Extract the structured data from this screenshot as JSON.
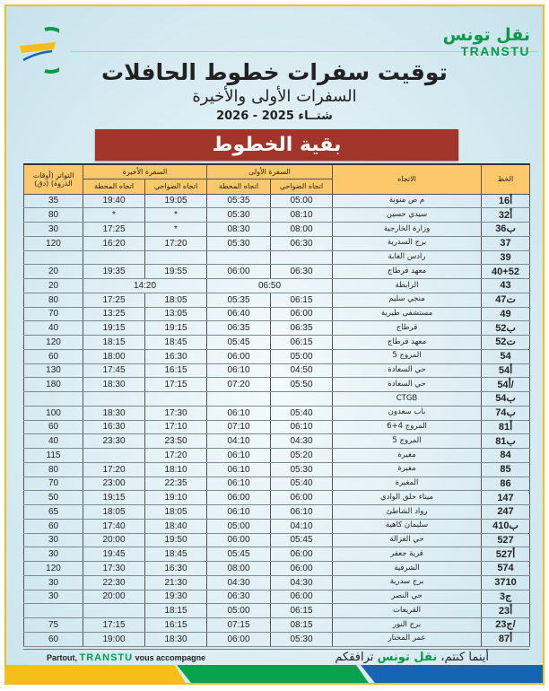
{
  "brand": {
    "name_ar": "نقل تونس",
    "name_en": "TRANSTU",
    "colors": {
      "green": "#0b9a48",
      "yellow": "#f5bf1a",
      "blue": "#1565b4",
      "red": "#a2352a"
    }
  },
  "header": {
    "title": "توقيت سفرات خطوط الحافلات",
    "subtitle": "السفرات الأولى والأخيرة",
    "season": "شتــاء 2025 - 2026",
    "section": "بقية الخطوط"
  },
  "table": {
    "headers": {
      "line": "الخط",
      "destination": "الاتجاه",
      "first": "السفرة الأولى",
      "last": "السفرة الأخيرة",
      "frequency": "التواتر (أوقات الذروة) (دق)",
      "to_suburb": "اتجاه الضواحي",
      "to_station": "اتجاه المحطة"
    },
    "rows": [
      {
        "line": "16أ",
        "dest": "م ص منوبة",
        "fs": "05:00",
        "ft": "05:35",
        "ls": "19:05",
        "lt": "19:40",
        "freq": "35"
      },
      {
        "line": "32أ",
        "dest": "سيدي حسين",
        "fs": "08:10",
        "ft": "05:30",
        "ls": "*",
        "lt": "*",
        "freq": "80"
      },
      {
        "line": "36ب",
        "dest": "وزارة الخارجية",
        "fs": "08:00",
        "ft": "08:30",
        "ls": "*",
        "lt": "17:25",
        "freq": "30"
      },
      {
        "line": "37",
        "dest": "برج السدرية",
        "fs": "06:30",
        "ft": "05:30",
        "ls": "17:20",
        "lt": "16:20",
        "freq": "120"
      },
      {
        "line": "39",
        "dest": "رادس الغابة",
        "fs": "",
        "ft": "",
        "ls": "",
        "lt": "",
        "freq": ""
      },
      {
        "line": "40+52",
        "dest": "معهد قرطاج",
        "fs": "06:30",
        "ft": "06:00",
        "ls": "19:55",
        "lt": "19:35",
        "freq": "20"
      },
      {
        "line": "43",
        "dest": "الرابطة",
        "first_merged": "06:50",
        "last_merged": "14:20",
        "freq": "20"
      },
      {
        "line": "47ت",
        "dest": "منجي سليم",
        "fs": "06:15",
        "ft": "05:35",
        "ls": "18:05",
        "lt": "17:25",
        "freq": "80"
      },
      {
        "line": "49",
        "dest": "مستشفى طبرية",
        "fs": "06:00",
        "ft": "06:40",
        "ls": "13:05",
        "lt": "13:25",
        "freq": "70"
      },
      {
        "line": "52ب",
        "dest": "قرطاج",
        "fs": "06:35",
        "ft": "06:35",
        "ls": "19:15",
        "lt": "19:15",
        "freq": "40"
      },
      {
        "line": "52ت",
        "dest": "معهد قرطاج",
        "fs": "06:15",
        "ft": "05:45",
        "ls": "18:45",
        "lt": "18:15",
        "freq": "120"
      },
      {
        "line": "54",
        "dest": "المروج 5",
        "fs": "05:00",
        "ft": "06:00",
        "ls": "16:30",
        "lt": "18:00",
        "freq": "60"
      },
      {
        "line": "54أ",
        "dest": "حي السعادة",
        "fs": "04:50",
        "ft": "06:10",
        "ls": "16:15",
        "lt": "17:45",
        "freq": "130"
      },
      {
        "line": "54أ/",
        "dest": "حي السعادة",
        "fs": "05:50",
        "ft": "07:20",
        "ls": "17:15",
        "lt": "18:30",
        "freq": "180"
      },
      {
        "line": "54ب",
        "dest": "CTGB",
        "fs": "",
        "ft": "",
        "ls": "",
        "lt": "",
        "freq": ""
      },
      {
        "line": "74ب",
        "dest": "باب سعدون",
        "fs": "05:40",
        "ft": "06:10",
        "ls": "17:30",
        "lt": "18:30",
        "freq": "100"
      },
      {
        "line": "81أ",
        "dest": "المروج 4+6",
        "fs": "06:10",
        "ft": "07:10",
        "ls": "17:10",
        "lt": "16:30",
        "freq": "60"
      },
      {
        "line": "81ب",
        "dest": "المروج 5",
        "fs": "04:30",
        "ft": "04:10",
        "ls": "23:50",
        "lt": "23:30",
        "freq": "40"
      },
      {
        "line": "84",
        "dest": "مغيرة",
        "fs": "05:20",
        "ft": "06:10",
        "ls": "17:20",
        "lt": "",
        "freq": "115"
      },
      {
        "line": "85",
        "dest": "مغيرة",
        "fs": "05:30",
        "ft": "06:10",
        "ls": "18:10",
        "lt": "17:20",
        "freq": "80"
      },
      {
        "line": "86",
        "dest": "المغيرة",
        "fs": "05:40",
        "ft": "06:10",
        "ls": "22:35",
        "lt": "23:00",
        "freq": "70"
      },
      {
        "line": "147",
        "dest": "ميناء حلق الوادي",
        "fs": "06:00",
        "ft": "06:00",
        "ls": "19:10",
        "lt": "19:15",
        "freq": "50"
      },
      {
        "line": "247",
        "dest": "رواد الشاطئ",
        "fs": "06:10",
        "ft": "06:10",
        "ls": "18:05",
        "lt": "18:05",
        "freq": "65"
      },
      {
        "line": "410ب",
        "dest": "سليمان كاهية",
        "fs": "04:10",
        "ft": "05:00",
        "ls": "18:40",
        "lt": "17:40",
        "freq": "60"
      },
      {
        "line": "527",
        "dest": "حي الغزالة",
        "fs": "05:45",
        "ft": "06:00",
        "ls": "19:50",
        "lt": "20:00",
        "freq": "30"
      },
      {
        "line": "527أ",
        "dest": "قرية جعفر",
        "fs": "06:00",
        "ft": "05:45",
        "ls": "18:45",
        "lt": "19:45",
        "freq": "30"
      },
      {
        "line": "574",
        "dest": "الشرقية",
        "fs": "06:00",
        "ft": "08:00",
        "ls": "16:30",
        "lt": "17:30",
        "freq": "120"
      },
      {
        "line": "3710",
        "dest": "برج سدرية",
        "fs": "04:30",
        "ft": "04:30",
        "ls": "21:30",
        "lt": "22:30",
        "freq": "30"
      },
      {
        "line": "3ج",
        "dest": "حي النصر",
        "fs": "06:00",
        "ft": "06:30",
        "ls": "19:30",
        "lt": "20:00",
        "freq": "30"
      },
      {
        "line": "23أ",
        "dest": "القريعات",
        "fs": "06:15",
        "ft": "05:00",
        "ls": "18:15",
        "lt": "",
        "freq": ""
      },
      {
        "line": "23ج/",
        "dest": "برج النور",
        "fs": "08:15",
        "ft": "07:15",
        "ls": "16:15",
        "lt": "17:15",
        "freq": "75"
      },
      {
        "line": "87أ",
        "dest": "عمر المختار",
        "fs": "05:30",
        "ft": "06:00",
        "ls": "18:30",
        "lt": "19:00",
        "freq": "60"
      }
    ]
  },
  "footer": {
    "fr_before": "Partout, ",
    "fr_brand": "TRANSTU",
    "fr_after": " vous accompagne",
    "ar_before": "أينما كنتم، ",
    "ar_brand": "نقل تونس",
    "ar_after": " ترافقكم"
  }
}
